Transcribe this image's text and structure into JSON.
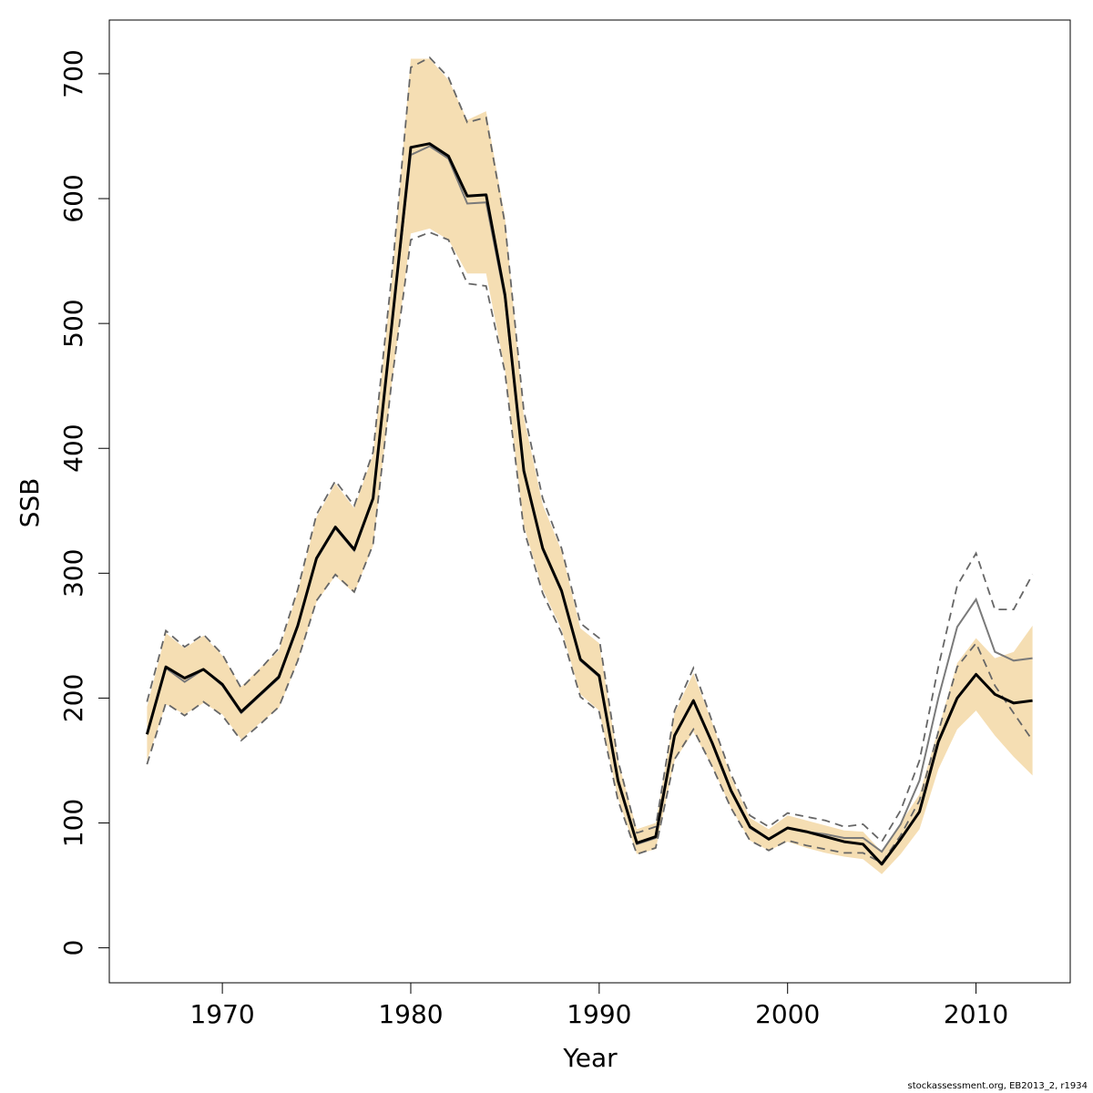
{
  "chart_data": {
    "type": "line",
    "xlabel": "Year",
    "ylabel": "SSB",
    "xlim": [
      1964,
      2015
    ],
    "ylim": [
      -28,
      743
    ],
    "x_ticks": [
      1970,
      1980,
      1990,
      2000,
      2010
    ],
    "y_ticks": [
      0,
      100,
      200,
      300,
      400,
      500,
      600,
      700
    ],
    "grid": false,
    "legend": "none",
    "colors": {
      "band": "#f5deb3",
      "current_estimate": "#000000",
      "previous_estimate": "#7a7a7a",
      "previous_bounds": "#666666",
      "frame": "#000000"
    },
    "x": [
      1966,
      1967,
      1968,
      1969,
      1970,
      1971,
      1972,
      1973,
      1974,
      1975,
      1976,
      1977,
      1978,
      1979,
      1980,
      1981,
      1982,
      1983,
      1984,
      1985,
      1986,
      1987,
      1988,
      1989,
      1990,
      1991,
      1992,
      1993,
      1994,
      1995,
      1996,
      1997,
      1998,
      1999,
      2000,
      2001,
      2002,
      2003,
      2004,
      2005,
      2006,
      2007,
      2008,
      2009,
      2010,
      2011,
      2012,
      2013
    ],
    "series": [
      {
        "role": "band-upper",
        "values": [
          193,
          252,
          240,
          250,
          234,
          209,
          224,
          238,
          285,
          345,
          372,
          352,
          395,
          535,
          712,
          712,
          695,
          663,
          670,
          585,
          425,
          355,
          318,
          256,
          244,
          150,
          95,
          100,
          188,
          220,
          180,
          137,
          104,
          95,
          106,
          102,
          98,
          94,
          93,
          77,
          100,
          123,
          175,
          228,
          248,
          232,
          237,
          258
        ]
      },
      {
        "role": "band-lower",
        "values": [
          150,
          195,
          187,
          196,
          187,
          167,
          180,
          192,
          229,
          277,
          298,
          284,
          322,
          453,
          572,
          576,
          567,
          540,
          540,
          463,
          338,
          287,
          255,
          203,
          190,
          120,
          75,
          79,
          150,
          173,
          145,
          112,
          86,
          78,
          85,
          80,
          76,
          73,
          71,
          59,
          75,
          95,
          143,
          175,
          190,
          170,
          153,
          138
        ]
      },
      {
        "role": "previous-upper",
        "values": [
          197,
          254,
          241,
          251,
          235,
          208,
          223,
          240,
          287,
          347,
          374,
          354,
          397,
          540,
          705,
          713,
          697,
          661,
          665,
          580,
          430,
          360,
          320,
          260,
          248,
          150,
          92,
          97,
          190,
          224,
          181,
          139,
          106,
          97,
          108,
          105,
          102,
          97,
          99,
          85,
          110,
          150,
          225,
          290,
          316,
          271,
          271,
          299
        ]
      },
      {
        "role": "previous-lower",
        "values": [
          147,
          196,
          186,
          197,
          186,
          166,
          179,
          193,
          230,
          278,
          299,
          285,
          323,
          455,
          567,
          573,
          567,
          532,
          530,
          461,
          335,
          284,
          252,
          201,
          189,
          118,
          75,
          80,
          151,
          175,
          145,
          112,
          86,
          78,
          86,
          82,
          79,
          76,
          76,
          68,
          90,
          118,
          173,
          225,
          244,
          210,
          188,
          166
        ]
      },
      {
        "role": "previous-estimate",
        "values": [
          171,
          224,
          213,
          223,
          210,
          188,
          202,
          216,
          257,
          311,
          336,
          318,
          359,
          500,
          635,
          642,
          632,
          596,
          597,
          520,
          381,
          319,
          285,
          230,
          217,
          133,
          83,
          88,
          169,
          198,
          163,
          125,
          96,
          87,
          96,
          93,
          91,
          88,
          88,
          77,
          99,
          134,
          200,
          257,
          279,
          237,
          230,
          232
        ]
      },
      {
        "role": "current-estimate",
        "values": [
          171,
          225,
          216,
          223,
          211,
          189,
          203,
          217,
          258,
          312,
          337,
          319,
          360,
          500,
          641,
          644,
          634,
          602,
          603,
          523,
          382,
          320,
          286,
          231,
          218,
          134,
          84,
          89,
          170,
          198,
          164,
          126,
          97,
          87,
          96,
          93,
          89,
          85,
          83,
          67,
          87,
          109,
          165,
          200,
          219,
          203,
          196,
          198
        ]
      }
    ]
  },
  "footer": {
    "credit": "stockassessment.org, EB2013_2, r1934"
  }
}
